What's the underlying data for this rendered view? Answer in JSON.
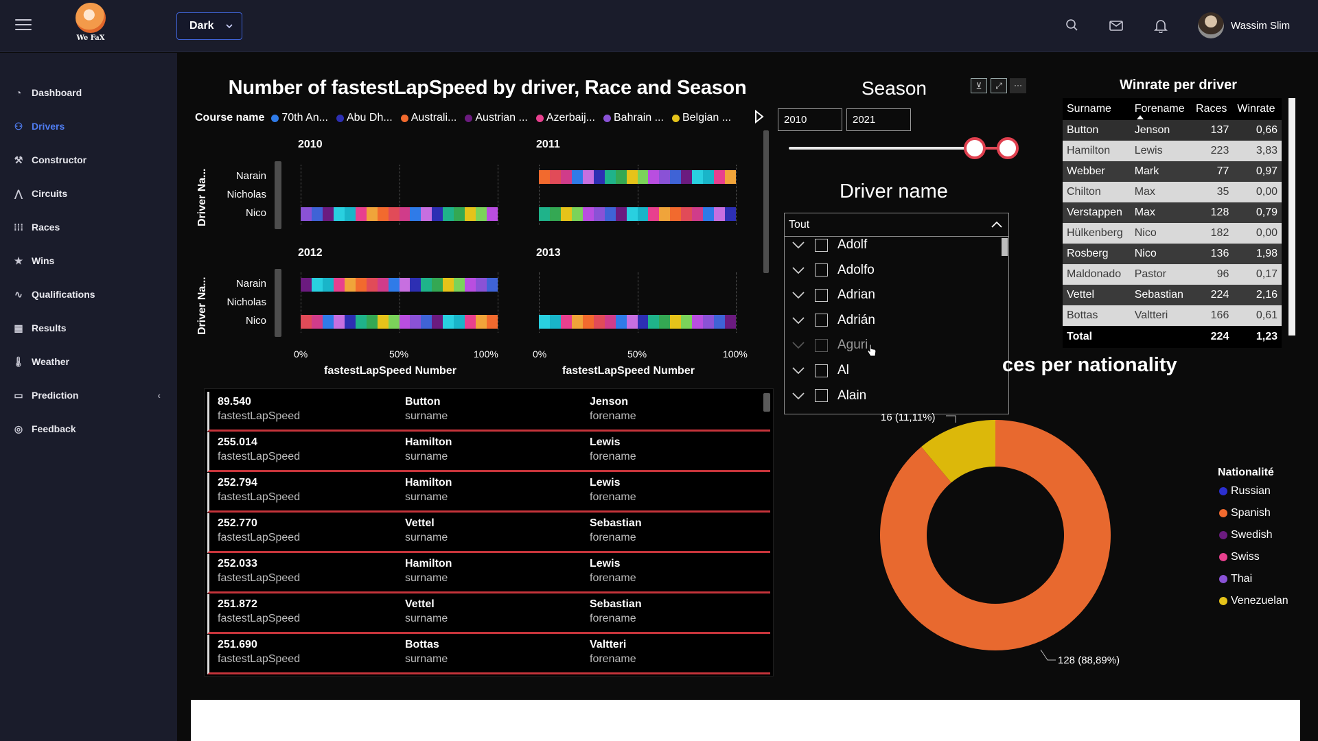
{
  "topbar": {
    "logo_text": "We FaX",
    "theme": "Dark",
    "user_name": "Wassim Slim"
  },
  "sidebar": {
    "items": [
      {
        "label": "Dashboard",
        "icon": "dashboard-icon",
        "active": false
      },
      {
        "label": "Drivers",
        "icon": "users-icon",
        "active": true
      },
      {
        "label": "Constructor",
        "icon": "wrench-icon",
        "active": false
      },
      {
        "label": "Circuits",
        "icon": "circuit-icon",
        "active": false
      },
      {
        "label": "Races",
        "icon": "grid-icon",
        "active": false
      },
      {
        "label": "Wins",
        "icon": "star-icon",
        "active": false
      },
      {
        "label": "Qualifications",
        "icon": "activity-icon",
        "active": false
      },
      {
        "label": "Results",
        "icon": "table-icon",
        "active": false
      },
      {
        "label": "Weather",
        "icon": "thermometer-icon",
        "active": false
      },
      {
        "label": "Prediction",
        "icon": "monitor-icon",
        "active": false
      },
      {
        "label": "Feedback",
        "icon": "feedback-icon",
        "active": false
      }
    ]
  },
  "main_chart": {
    "title": "Number of fastestLapSpeed by driver, Race and Season",
    "legend_title": "Course name",
    "legend_items": [
      {
        "label": "70th An...",
        "color": "#2f7be8"
      },
      {
        "label": "Abu Dh...",
        "color": "#2d2fb3"
      },
      {
        "label": "Australi...",
        "color": "#f26a2e"
      },
      {
        "label": "Austrian ...",
        "color": "#6b1b7f"
      },
      {
        "label": "Azerbaij...",
        "color": "#e8408e"
      },
      {
        "label": "Bahrain ...",
        "color": "#8a52d6"
      },
      {
        "label": "Belgian ...",
        "color": "#e5c31a"
      }
    ],
    "y_axis_label": "Driver Na...",
    "x_axis_label": "fastestLapSpeed Number",
    "drivers": [
      "Narain",
      "Nicholas",
      "Nico"
    ],
    "pct_ticks": [
      "0%",
      "50%",
      "100%"
    ]
  },
  "chart_data": {
    "type": "bar",
    "title": "Number of fastestLapSpeed by driver, Race and Season",
    "xlabel": "fastestLapSpeed Number",
    "ylabel": "Driver Na...",
    "stacked_percent": true,
    "facets": [
      {
        "season": "2010",
        "categories": [
          "Narain",
          "Nicholas",
          "Nico"
        ],
        "has_data": [
          false,
          false,
          true
        ]
      },
      {
        "season": "2011",
        "categories": [
          "Narain",
          "Nicholas",
          "Nico"
        ],
        "has_data": [
          true,
          false,
          true
        ]
      },
      {
        "season": "2012",
        "categories": [
          "Narain",
          "Nicholas",
          "Nico"
        ],
        "has_data": [
          true,
          false,
          true
        ]
      },
      {
        "season": "2013",
        "categories": [
          "Narain",
          "Nicholas",
          "Nico"
        ],
        "has_data": [
          false,
          false,
          true
        ]
      }
    ],
    "xlim": [
      0,
      100
    ]
  },
  "cards": {
    "value_label": "fastestLapSpeed",
    "surname_label": "surname",
    "forename_label": "forename",
    "rows": [
      {
        "value": "89.540",
        "surname": "Button",
        "forename": "Jenson"
      },
      {
        "value": "255.014",
        "surname": "Hamilton",
        "forename": "Lewis"
      },
      {
        "value": "252.794",
        "surname": "Hamilton",
        "forename": "Lewis"
      },
      {
        "value": "252.770",
        "surname": "Vettel",
        "forename": "Sebastian"
      },
      {
        "value": "252.033",
        "surname": "Hamilton",
        "forename": "Lewis"
      },
      {
        "value": "251.872",
        "surname": "Vettel",
        "forename": "Sebastian"
      },
      {
        "value": "251.690",
        "surname": "Bottas",
        "forename": "Valtteri"
      }
    ]
  },
  "season": {
    "title": "Season",
    "from": "2010",
    "to": "2021"
  },
  "driver_filter": {
    "title": "Driver name",
    "selected": "Tout",
    "options": [
      {
        "label": "Adolf",
        "faint": false
      },
      {
        "label": "Adolfo",
        "faint": false
      },
      {
        "label": "Adrian",
        "faint": false
      },
      {
        "label": "Adrián",
        "faint": false
      },
      {
        "label": "Aguri",
        "faint": true
      },
      {
        "label": "Al",
        "faint": false
      },
      {
        "label": "Alain",
        "faint": false
      }
    ]
  },
  "winrate": {
    "title": "Winrate per driver",
    "columns": [
      "Surname",
      "Forename",
      "Races",
      "Winrate"
    ],
    "rows": [
      {
        "surname": "Button",
        "forename": "Jenson",
        "races": "137",
        "winrate": "0,66"
      },
      {
        "surname": "Hamilton",
        "forename": "Lewis",
        "races": "223",
        "winrate": "3,83"
      },
      {
        "surname": "Webber",
        "forename": "Mark",
        "races": "77",
        "winrate": "0,97"
      },
      {
        "surname": "Chilton",
        "forename": "Max",
        "races": "35",
        "winrate": "0,00"
      },
      {
        "surname": "Verstappen",
        "forename": "Max",
        "races": "128",
        "winrate": "0,79"
      },
      {
        "surname": "Hülkenberg",
        "forename": "Nico",
        "races": "182",
        "winrate": "0,00"
      },
      {
        "surname": "Rosberg",
        "forename": "Nico",
        "races": "136",
        "winrate": "1,98"
      },
      {
        "surname": "Maldonado",
        "forename": "Pastor",
        "races": "96",
        "winrate": "0,17"
      },
      {
        "surname": "Vettel",
        "forename": "Sebastian",
        "races": "224",
        "winrate": "2,16"
      },
      {
        "surname": "Bottas",
        "forename": "Valtteri",
        "races": "166",
        "winrate": "0,61"
      }
    ],
    "total_label": "Total",
    "total_races": "224",
    "total_winrate": "1,23"
  },
  "nationality": {
    "title_visible": "ces per nationality",
    "slices": [
      {
        "label": "16 (11,11%)",
        "value": 16,
        "color": "#dcb80a"
      },
      {
        "label": "128 (88,89%)",
        "value": 128,
        "color": "#e8692f"
      }
    ],
    "legend_title": "Nationalité",
    "legend": [
      {
        "label": "Russian",
        "color": "#2b2fd0"
      },
      {
        "label": "Spanish",
        "color": "#f26a2e"
      },
      {
        "label": "Swedish",
        "color": "#6b1b7f"
      },
      {
        "label": "Swiss",
        "color": "#e8408e"
      },
      {
        "label": "Thai",
        "color": "#8a52d6"
      },
      {
        "label": "Venezuelan",
        "color": "#e5c31a"
      }
    ]
  }
}
